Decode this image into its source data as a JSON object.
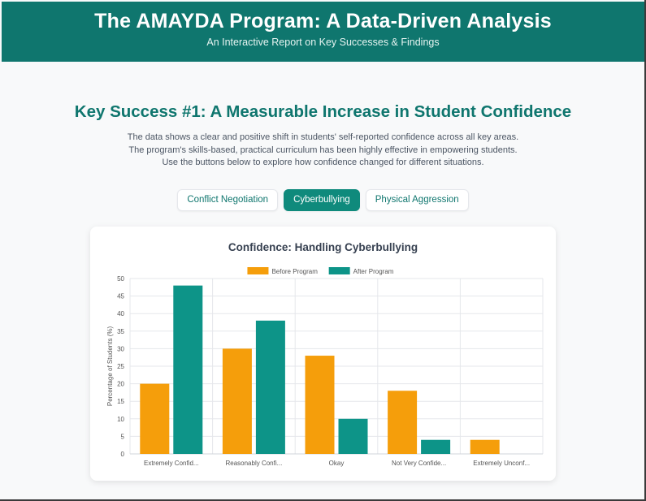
{
  "header": {
    "title": "The AMAYDA Program: A Data-Driven Analysis",
    "subtitle": "An Interactive Report on Key Successes & Findings"
  },
  "section": {
    "title": "Key Success #1: A Measurable Increase in Student Confidence",
    "description": [
      "The data shows a clear and positive shift in students' self-reported confidence across all key areas.",
      "The program's skills-based, practical curriculum has been highly effective in empowering students.",
      "Use the buttons below to explore how confidence changed for different situations."
    ]
  },
  "tabs": [
    {
      "label": "Conflict Negotiation",
      "active": false
    },
    {
      "label": "Cyberbullying",
      "active": true
    },
    {
      "label": "Physical Aggression",
      "active": false
    }
  ],
  "colors": {
    "brand": "#0f766e",
    "before": "#f59e0b",
    "after": "#0d9488"
  },
  "chart_data": {
    "type": "bar",
    "title": "Confidence: Handling Cyberbullying",
    "ylabel": "Percentage of Students (%)",
    "xlabel": "",
    "categories": [
      "Extremely Confid...",
      "Reasonably Confi...",
      "Okay",
      "Not Very Confide...",
      "Extremely Unconf..."
    ],
    "series": [
      {
        "name": "Before Program",
        "values": [
          20,
          30,
          28,
          18,
          4
        ]
      },
      {
        "name": "After Program",
        "values": [
          48,
          38,
          10,
          4,
          0
        ]
      }
    ],
    "ylim": [
      0,
      50
    ],
    "yticks": [
      0,
      5,
      10,
      15,
      20,
      25,
      30,
      35,
      40,
      45,
      50
    ],
    "legend": "top",
    "grid": true
  }
}
